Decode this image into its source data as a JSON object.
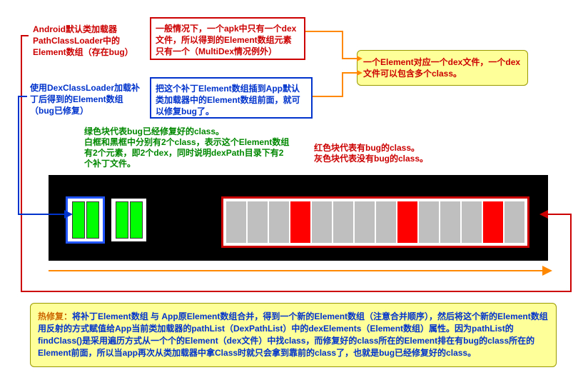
{
  "label_red1": "Android默认类加载器PathClassLoader中的Element数组（存在bug）",
  "box_red": "一般情况下，一个apk中只有一个dex文件，所以得到的Element数组元素只有一个（MultiDex情况例外）",
  "box_yellow1": "一个Element对应一个dex文件，一个dex文件可以包含多个class。",
  "label_blue1": "使用DexClassLoader加载补丁后得到的Element数组（bug已修复）",
  "box_blue": "把这个补丁Element数组插到App默认类加载器中的Element数组前面，就可以修复bug了。",
  "desc_green": "绿色块代表bug已经修复好的class。\n白框和黑框中分别有2个class，表示这个Element数组有2个元素，即2个dex，同时说明dexPath目录下有2个补丁文件。",
  "desc_red": "红色块代表有bug的class。\n灰色块代表没有bug的class。",
  "box_yellow2_prefix": "热修复：",
  "box_yellow2_body": "将补丁Element数组 与 App原Element数组合并，得到一个新的Element数组（注意合并顺序），然后将这个新的Element数组用反射的方式赋值给App当前类加载器的pathList（DexPathList）中的dexElements（Element数组）属性。因为pathList的findClass()是采用遍历方式从一个个的Element（dex文件）中找class，而修复好的class所在的Element排在有bug的class所在的Element前面，所以当app再次从类加载器中拿Class时就只会拿到靠前的class了，也就是bug已经修复好的class。",
  "original_classes": [
    "grey",
    "grey",
    "grey",
    "red",
    "grey",
    "grey",
    "grey",
    "grey",
    "red",
    "grey",
    "grey",
    "grey",
    "red",
    "grey"
  ],
  "colors": {
    "red": "#cc0000",
    "blue": "#0033cc",
    "green": "#008800",
    "cls_green": "#00ff00",
    "cls_red": "#ff0000",
    "cls_grey": "#bfbfbf",
    "yellow_bg": "#ffff99",
    "black": "#000000",
    "orange": "#ff8800"
  }
}
